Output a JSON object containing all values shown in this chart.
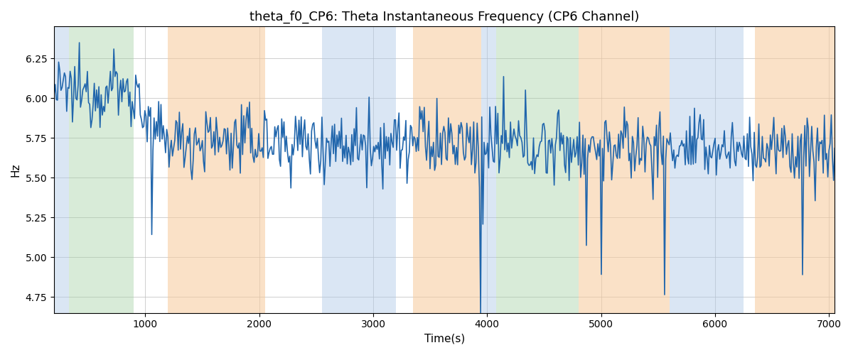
{
  "title": "theta_f0_CP6: Theta Instantaneous Frequency (CP6 Channel)",
  "xlabel": "Time(s)",
  "ylabel": "Hz",
  "xlim": [
    200,
    7050
  ],
  "ylim": [
    4.65,
    6.45
  ],
  "line_color": "#2166ac",
  "line_width": 1.2,
  "background_regions": [
    {
      "xmin": 200,
      "xmax": 330,
      "color": "#aec9e8",
      "alpha": 0.45
    },
    {
      "xmin": 330,
      "xmax": 900,
      "color": "#9ecf9e",
      "alpha": 0.4
    },
    {
      "xmin": 1200,
      "xmax": 2050,
      "color": "#f7c99a",
      "alpha": 0.55
    },
    {
      "xmin": 2550,
      "xmax": 3200,
      "color": "#aec9e8",
      "alpha": 0.45
    },
    {
      "xmin": 3350,
      "xmax": 3950,
      "color": "#f7c99a",
      "alpha": 0.55
    },
    {
      "xmin": 3950,
      "xmax": 4080,
      "color": "#aec9e8",
      "alpha": 0.45
    },
    {
      "xmin": 4080,
      "xmax": 4800,
      "color": "#9ecf9e",
      "alpha": 0.4
    },
    {
      "xmin": 4800,
      "xmax": 5600,
      "color": "#f7c99a",
      "alpha": 0.55
    },
    {
      "xmin": 5600,
      "xmax": 6250,
      "color": "#aec9e8",
      "alpha": 0.45
    },
    {
      "xmin": 6350,
      "xmax": 7050,
      "color": "#f7c99a",
      "alpha": 0.55
    }
  ],
  "grid": true,
  "grid_color": "#bbbbbb",
  "grid_alpha": 0.7,
  "title_fontsize": 13,
  "label_fontsize": 11,
  "tick_fontsize": 10,
  "xticks": [
    1000,
    2000,
    3000,
    4000,
    5000,
    6000,
    7000
  ],
  "yticks": [
    4.75,
    5.0,
    5.25,
    5.5,
    5.75,
    6.0,
    6.25
  ],
  "seed": 12345,
  "n_points": 680,
  "t_start": 200,
  "t_end": 7050
}
